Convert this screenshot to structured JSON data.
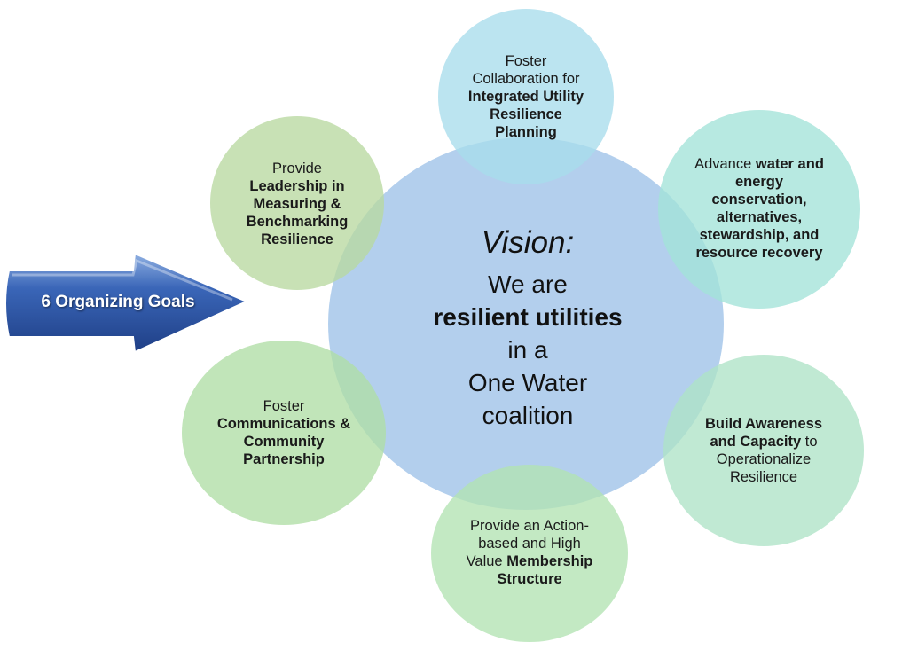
{
  "arrow": {
    "label": "6 Organizing Goals"
  },
  "vision": {
    "title": "Vision:",
    "line1": "We are",
    "line2": "resilient utilities",
    "line3": "in a",
    "line4": "One Water",
    "line5": "coalition"
  },
  "goals": {
    "collaboration": {
      "pre": "Foster Collaboration for ",
      "bold": "Integrated Utility Resilience Planning"
    },
    "water": {
      "pre": "Advance ",
      "bold": "water and energy conservation, alternatives, stewardship, and resource recovery"
    },
    "awareness": {
      "bold": "Build Awareness and Capacity",
      "post": " to Operationalize Resilience"
    },
    "membership": {
      "pre": "Provide an Action-based and High Value ",
      "bold": "Membership Structure"
    },
    "communications": {
      "pre": "Foster ",
      "bold": "Communications & Community Partnership"
    },
    "leadership": {
      "pre": "Provide ",
      "bold": "Leadership in Measuring & Benchmarking Resilience"
    }
  },
  "colors": {
    "center": "#a9c8ea",
    "collaboration": "#a8dcec",
    "water": "#a3e3d8",
    "awareness": "#aee3c7",
    "membership": "#b2e3b2",
    "communications": "#b0dea5",
    "leadership": "#b8d8a0",
    "arrow": "#2f5ba8"
  }
}
